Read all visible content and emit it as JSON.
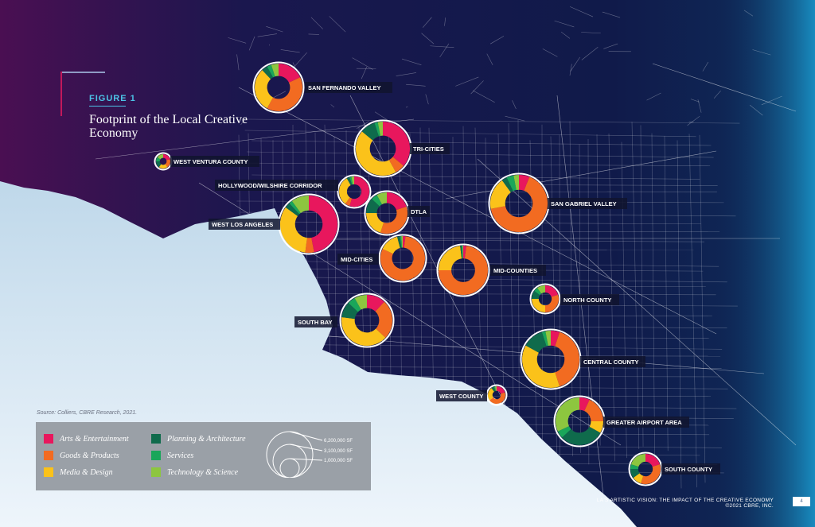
{
  "figure": {
    "label": "FIGURE 1",
    "title": "Footprint of the Local Creative Economy"
  },
  "source": "Source: Colliers, CBRE Research, 2021.",
  "colors": {
    "arts": "#e8175d",
    "goods": "#f26b21",
    "media": "#fbc21a",
    "planning": "#0f6b4c",
    "services": "#1aa65a",
    "technology": "#8dc63f",
    "ocean": "#d7e8f4",
    "land": "#12184a"
  },
  "legend": {
    "categories": [
      {
        "key": "arts",
        "label": "Arts & Entertainment"
      },
      {
        "key": "goods",
        "label": "Goods & Products"
      },
      {
        "key": "media",
        "label": "Media & Design"
      },
      {
        "key": "planning",
        "label": "Planning & Architecture"
      },
      {
        "key": "services",
        "label": "Services"
      },
      {
        "key": "technology",
        "label": "Technology & Science"
      }
    ],
    "sizes": [
      {
        "label": "6,200,000 SF",
        "value": 6200000
      },
      {
        "label": "3,100,000 SF",
        "value": 3100000
      },
      {
        "label": "1,000,000 SF",
        "value": 1000000
      }
    ]
  },
  "regions": [
    {
      "name": "SAN FERNANDO VALLEY",
      "sf": 3000000,
      "shares": [
        0.18,
        0.4,
        0.3,
        0.04,
        0.03,
        0.05
      ]
    },
    {
      "name": "WEST VENTURA COUNTY",
      "sf": 380000,
      "shares": [
        0.2,
        0.2,
        0.2,
        0.15,
        0.1,
        0.15
      ]
    },
    {
      "name": "TRI-CITIES",
      "sf": 4000000,
      "shares": [
        0.36,
        0.06,
        0.44,
        0.09,
        0.02,
        0.03
      ]
    },
    {
      "name": "HOLLYWOOD/WILSHIRE CORRIDOR",
      "sf": 1400000,
      "shares": [
        0.55,
        0.05,
        0.32,
        0.03,
        0.02,
        0.03
      ]
    },
    {
      "name": "DTLA",
      "sf": 2300000,
      "shares": [
        0.2,
        0.35,
        0.2,
        0.12,
        0.05,
        0.08
      ]
    },
    {
      "name": "WEST LOS ANGELES",
      "sf": 4300000,
      "shares": [
        0.47,
        0.05,
        0.33,
        0.03,
        0.02,
        0.1
      ]
    },
    {
      "name": "SAN GABRIEL VALLEY",
      "sf": 4400000,
      "shares": [
        0.06,
        0.66,
        0.18,
        0.03,
        0.04,
        0.03
      ]
    },
    {
      "name": "MID-CITIES",
      "sf": 3500000,
      "shares": [
        0.02,
        0.8,
        0.14,
        0.02,
        0.01,
        0.01
      ]
    },
    {
      "name": "MID-COUNTIES",
      "sf": 3600000,
      "shares": [
        0.02,
        0.73,
        0.23,
        0.01,
        0.005,
        0.005
      ]
    },
    {
      "name": "NORTH COUNTY",
      "sf": 1000000,
      "shares": [
        0.2,
        0.3,
        0.25,
        0.1,
        0.05,
        0.1
      ]
    },
    {
      "name": "SOUTH BAY",
      "sf": 3700000,
      "shares": [
        0.12,
        0.25,
        0.4,
        0.1,
        0.05,
        0.08
      ]
    },
    {
      "name": "CENTRAL COUNTY",
      "sf": 4600000,
      "shares": [
        0.05,
        0.4,
        0.38,
        0.12,
        0.02,
        0.03
      ]
    },
    {
      "name": "WEST COUNTY",
      "sf": 500000,
      "shares": [
        0.2,
        0.45,
        0.25,
        0.05,
        0.02,
        0.03
      ]
    },
    {
      "name": "GREATER AIRPORT AREA",
      "sf": 3000000,
      "shares": [
        0.07,
        0.18,
        0.08,
        0.3,
        0.05,
        0.32
      ]
    },
    {
      "name": "SOUTH COUNTY",
      "sf": 1400000,
      "shares": [
        0.2,
        0.35,
        0.1,
        0.1,
        0.05,
        0.2
      ]
    }
  ],
  "footer": {
    "line1": "LA'S ARTISTIC VISION: THE IMPACT OF THE CREATIVE ECONOMY",
    "line2": "©2021 CBRE, INC.",
    "page": "4"
  }
}
